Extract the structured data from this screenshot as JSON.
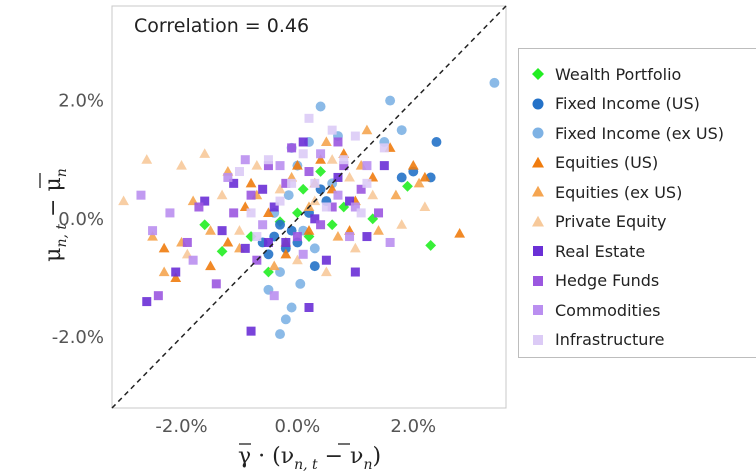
{
  "chart_data": {
    "type": "scatter",
    "annotation": "Correlation = 0.46",
    "xlabel": "γ̄ · (ν_{n,t} − ν̄_n)",
    "ylabel": "μ_{n,t} − μ̄_n",
    "xlim": [
      -3.2,
      3.6
    ],
    "ylim": [
      -3.2,
      3.6
    ],
    "x_ticks": [
      -2.0,
      0.0,
      2.0
    ],
    "x_tick_labels": [
      "-2.0%",
      "0.0%",
      "2.0%"
    ],
    "y_ticks": [
      -2.0,
      0.0,
      2.0
    ],
    "y_tick_labels": [
      "-2.0%",
      "0.0%",
      "2.0%"
    ],
    "diagonal": "y = x (dashed)",
    "grid": false,
    "legend_position": "right",
    "series": [
      {
        "name": "Wealth Portfolio",
        "color": "#22ee22",
        "marker": "diamond",
        "points": [
          [
            -1.6,
            -0.1
          ],
          [
            -1.3,
            -0.55
          ],
          [
            -0.8,
            -0.3
          ],
          [
            -0.5,
            -0.9
          ],
          [
            -0.3,
            -0.05
          ],
          [
            0.0,
            0.1
          ],
          [
            0.1,
            0.5
          ],
          [
            0.2,
            -0.3
          ],
          [
            0.4,
            0.8
          ],
          [
            0.6,
            -0.1
          ],
          [
            0.8,
            0.2
          ],
          [
            1.3,
            0.0
          ],
          [
            1.9,
            0.55
          ],
          [
            2.3,
            -0.45
          ]
        ]
      },
      {
        "name": "Fixed Income (US)",
        "color": "#2472c8",
        "marker": "circle",
        "points": [
          [
            -0.6,
            -0.4
          ],
          [
            -0.5,
            -0.6
          ],
          [
            -0.4,
            -0.3
          ],
          [
            -0.3,
            -0.1
          ],
          [
            -0.2,
            -0.5
          ],
          [
            -0.1,
            -0.2
          ],
          [
            0.0,
            -0.4
          ],
          [
            0.2,
            0.1
          ],
          [
            0.3,
            -0.8
          ],
          [
            0.4,
            0.5
          ],
          [
            0.5,
            0.3
          ],
          [
            1.8,
            0.7
          ],
          [
            2.0,
            0.8
          ],
          [
            2.4,
            1.3
          ],
          [
            2.3,
            0.7
          ]
        ]
      },
      {
        "name": "Fixed Income (ex US)",
        "color": "#7eb2e4",
        "marker": "circle",
        "points": [
          [
            -0.5,
            -1.2
          ],
          [
            -0.4,
            0.1
          ],
          [
            -0.3,
            -0.9
          ],
          [
            -0.2,
            -1.7
          ],
          [
            -0.1,
            1.2
          ],
          [
            -0.1,
            -1.5
          ],
          [
            0.0,
            0.9
          ],
          [
            0.1,
            -0.2
          ],
          [
            0.2,
            1.3
          ],
          [
            0.3,
            -0.5
          ],
          [
            0.4,
            1.9
          ],
          [
            0.6,
            0.6
          ],
          [
            0.7,
            1.4
          ],
          [
            1.5,
            1.3
          ],
          [
            1.8,
            1.5
          ],
          [
            1.6,
            2.0
          ],
          [
            3.4,
            2.3
          ],
          [
            -0.3,
            -1.95
          ],
          [
            0.05,
            -1.1
          ],
          [
            -0.15,
            0.4
          ]
        ]
      },
      {
        "name": "Equities (US)",
        "color": "#f07c0e",
        "marker": "triangle",
        "points": [
          [
            -2.3,
            -0.5
          ],
          [
            -2.1,
            -1.0
          ],
          [
            -1.5,
            -0.8
          ],
          [
            -1.2,
            -0.4
          ],
          [
            -0.9,
            0.2
          ],
          [
            -0.8,
            0.6
          ],
          [
            -0.5,
            0.1
          ],
          [
            -0.2,
            -0.6
          ],
          [
            0.0,
            0.9
          ],
          [
            0.2,
            -0.2
          ],
          [
            0.4,
            1.0
          ],
          [
            0.6,
            0.5
          ],
          [
            0.8,
            1.1
          ],
          [
            1.0,
            0.3
          ],
          [
            1.3,
            0.7
          ],
          [
            1.6,
            1.2
          ],
          [
            2.0,
            0.9
          ],
          [
            2.2,
            0.7
          ],
          [
            2.8,
            -0.25
          ],
          [
            0.9,
            -0.2
          ]
        ]
      },
      {
        "name": "Equities (ex US)",
        "color": "#f5a550",
        "marker": "triangle",
        "points": [
          [
            -2.5,
            -0.3
          ],
          [
            -2.3,
            -0.9
          ],
          [
            -2.0,
            -0.4
          ],
          [
            -1.8,
            0.3
          ],
          [
            -1.5,
            -0.2
          ],
          [
            -1.2,
            0.8
          ],
          [
            -1.0,
            -0.5
          ],
          [
            -0.7,
            0.4
          ],
          [
            -0.4,
            -0.8
          ],
          [
            -0.1,
            0.7
          ],
          [
            0.2,
            0.2
          ],
          [
            0.5,
            1.3
          ],
          [
            0.7,
            -0.3
          ],
          [
            1.1,
            0.9
          ],
          [
            1.4,
            -0.2
          ],
          [
            1.7,
            0.4
          ],
          [
            2.1,
            0.6
          ],
          [
            1.2,
            1.5
          ],
          [
            -0.2,
            -0.4
          ],
          [
            0.3,
            0.6
          ]
        ]
      },
      {
        "name": "Private Equity",
        "color": "#f7c99a",
        "marker": "triangle",
        "points": [
          [
            -3.0,
            0.3
          ],
          [
            -2.6,
            1.0
          ],
          [
            -2.0,
            0.9
          ],
          [
            -1.6,
            1.1
          ],
          [
            -1.3,
            0.4
          ],
          [
            -1.0,
            -0.2
          ],
          [
            -0.7,
            0.9
          ],
          [
            -0.3,
            0.5
          ],
          [
            0.0,
            -0.7
          ],
          [
            0.3,
            0.3
          ],
          [
            0.6,
            1.0
          ],
          [
            1.0,
            -0.5
          ],
          [
            1.3,
            0.4
          ],
          [
            1.8,
            -0.1
          ],
          [
            2.2,
            0.2
          ],
          [
            0.9,
            0.7
          ],
          [
            -1.9,
            -0.6
          ],
          [
            0.5,
            -0.9
          ]
        ]
      },
      {
        "name": "Real Estate",
        "color": "#6a2fd6",
        "marker": "square",
        "points": [
          [
            -2.6,
            -1.4
          ],
          [
            -2.1,
            -0.9
          ],
          [
            -1.6,
            0.3
          ],
          [
            -1.3,
            -0.2
          ],
          [
            -1.1,
            0.6
          ],
          [
            -0.9,
            -0.5
          ],
          [
            -0.8,
            -1.9
          ],
          [
            -0.6,
            0.5
          ],
          [
            -0.4,
            0.2
          ],
          [
            -0.2,
            -0.4
          ],
          [
            0.1,
            1.3
          ],
          [
            0.3,
            0.0
          ],
          [
            0.5,
            -0.7
          ],
          [
            0.7,
            0.7
          ],
          [
            0.9,
            0.3
          ],
          [
            1.2,
            -0.3
          ],
          [
            1.5,
            0.9
          ],
          [
            0.2,
            -1.5
          ],
          [
            -0.5,
            -0.4
          ],
          [
            1.0,
            -0.9
          ]
        ]
      },
      {
        "name": "Hedge Funds",
        "color": "#9b57e0",
        "marker": "square",
        "points": [
          [
            -2.4,
            -1.3
          ],
          [
            -1.9,
            -0.4
          ],
          [
            -1.7,
            0.2
          ],
          [
            -1.4,
            -1.1
          ],
          [
            -1.1,
            0.1
          ],
          [
            -0.8,
            0.4
          ],
          [
            -0.7,
            -0.7
          ],
          [
            -0.5,
            0.9
          ],
          [
            -0.2,
            0.6
          ],
          [
            0.0,
            -0.3
          ],
          [
            0.2,
            0.8
          ],
          [
            0.4,
            -0.1
          ],
          [
            0.6,
            0.2
          ],
          [
            0.8,
            0.9
          ],
          [
            1.1,
            0.5
          ],
          [
            1.4,
            0.1
          ],
          [
            -0.1,
            1.2
          ],
          [
            0.7,
            1.3
          ]
        ]
      },
      {
        "name": "Commodities",
        "color": "#ba8ff0",
        "marker": "square",
        "points": [
          [
            -2.7,
            0.4
          ],
          [
            -2.5,
            -0.2
          ],
          [
            -2.2,
            0.1
          ],
          [
            -1.8,
            -0.7
          ],
          [
            -1.2,
            0.7
          ],
          [
            -0.9,
            1.0
          ],
          [
            -0.6,
            -0.1
          ],
          [
            -0.3,
            0.9
          ],
          [
            0.1,
            -0.6
          ],
          [
            0.4,
            1.1
          ],
          [
            0.7,
            0.4
          ],
          [
            1.0,
            0.2
          ],
          [
            1.2,
            0.9
          ],
          [
            1.6,
            -0.4
          ],
          [
            -0.4,
            -1.3
          ],
          [
            0.9,
            -0.3
          ]
        ]
      },
      {
        "name": "Infrastructure",
        "color": "#dccbf6",
        "marker": "square",
        "points": [
          [
            -1.0,
            0.8
          ],
          [
            -0.8,
            0.1
          ],
          [
            -0.5,
            1.0
          ],
          [
            -0.3,
            0.3
          ],
          [
            -0.1,
            0.6
          ],
          [
            0.1,
            1.1
          ],
          [
            0.3,
            0.6
          ],
          [
            0.5,
            0.2
          ],
          [
            0.6,
            1.5
          ],
          [
            0.8,
            1.0
          ],
          [
            1.0,
            1.4
          ],
          [
            1.2,
            0.6
          ],
          [
            1.5,
            1.2
          ],
          [
            0.2,
            1.7
          ],
          [
            -0.7,
            -0.3
          ],
          [
            1.1,
            0.1
          ]
        ]
      }
    ]
  }
}
